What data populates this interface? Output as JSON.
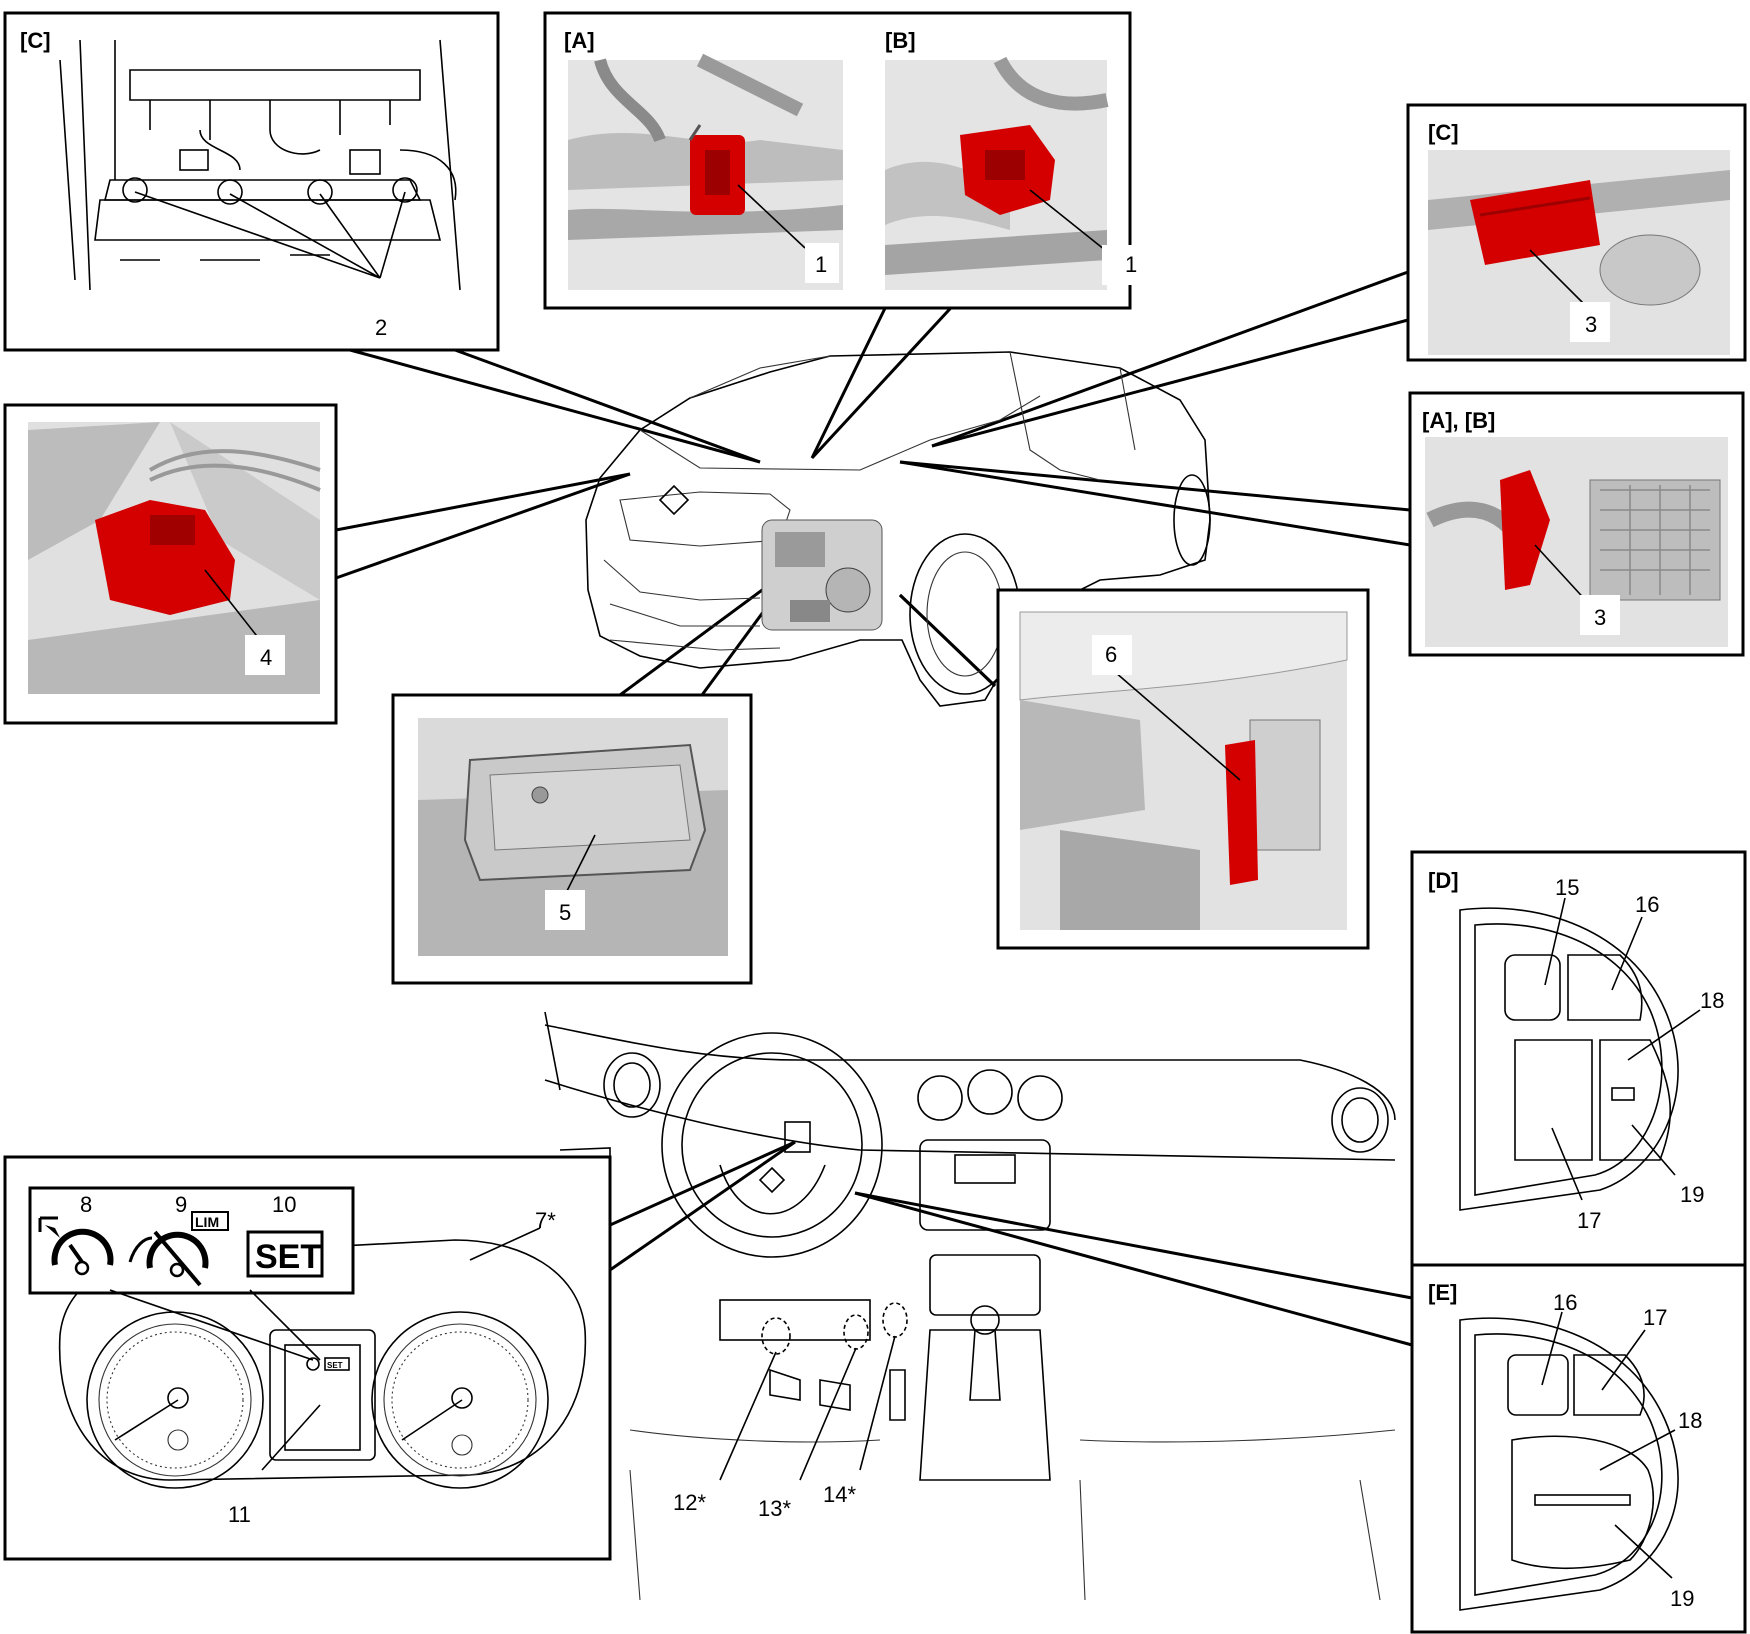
{
  "colors": {
    "highlight": "#d40000",
    "render_bg": "#e2e2e2",
    "render_dark": "#8e8e8e",
    "line": "#000000"
  },
  "panels": {
    "c_top": {
      "tag": "[C]",
      "label": "2"
    },
    "ab_top": {
      "tag_a": "[A]",
      "tag_b": "[B]",
      "label_a": "1",
      "label_b": "1"
    },
    "c_right": {
      "tag": "[C]",
      "label": "3"
    },
    "ab_right": {
      "tag": "[A], [B]",
      "label": "3"
    },
    "left_four": {
      "label": "4"
    },
    "center_five": {
      "label": "5"
    },
    "six": {
      "label": "6"
    },
    "d_switch": {
      "tag": "[D]",
      "labels": [
        "15",
        "16",
        "18",
        "17",
        "19"
      ]
    },
    "e_switch": {
      "tag": "[E]",
      "labels": [
        "16",
        "17",
        "18",
        "19"
      ]
    },
    "cluster": {
      "icon_labels": [
        "8",
        "9",
        "10"
      ],
      "lim_text": "LIM",
      "set_text": "SET",
      "mini_set_text": "SET",
      "label_7": "7*",
      "label_11": "11"
    },
    "dash": {
      "labels": [
        "12*",
        "13*",
        "14*"
      ]
    }
  }
}
